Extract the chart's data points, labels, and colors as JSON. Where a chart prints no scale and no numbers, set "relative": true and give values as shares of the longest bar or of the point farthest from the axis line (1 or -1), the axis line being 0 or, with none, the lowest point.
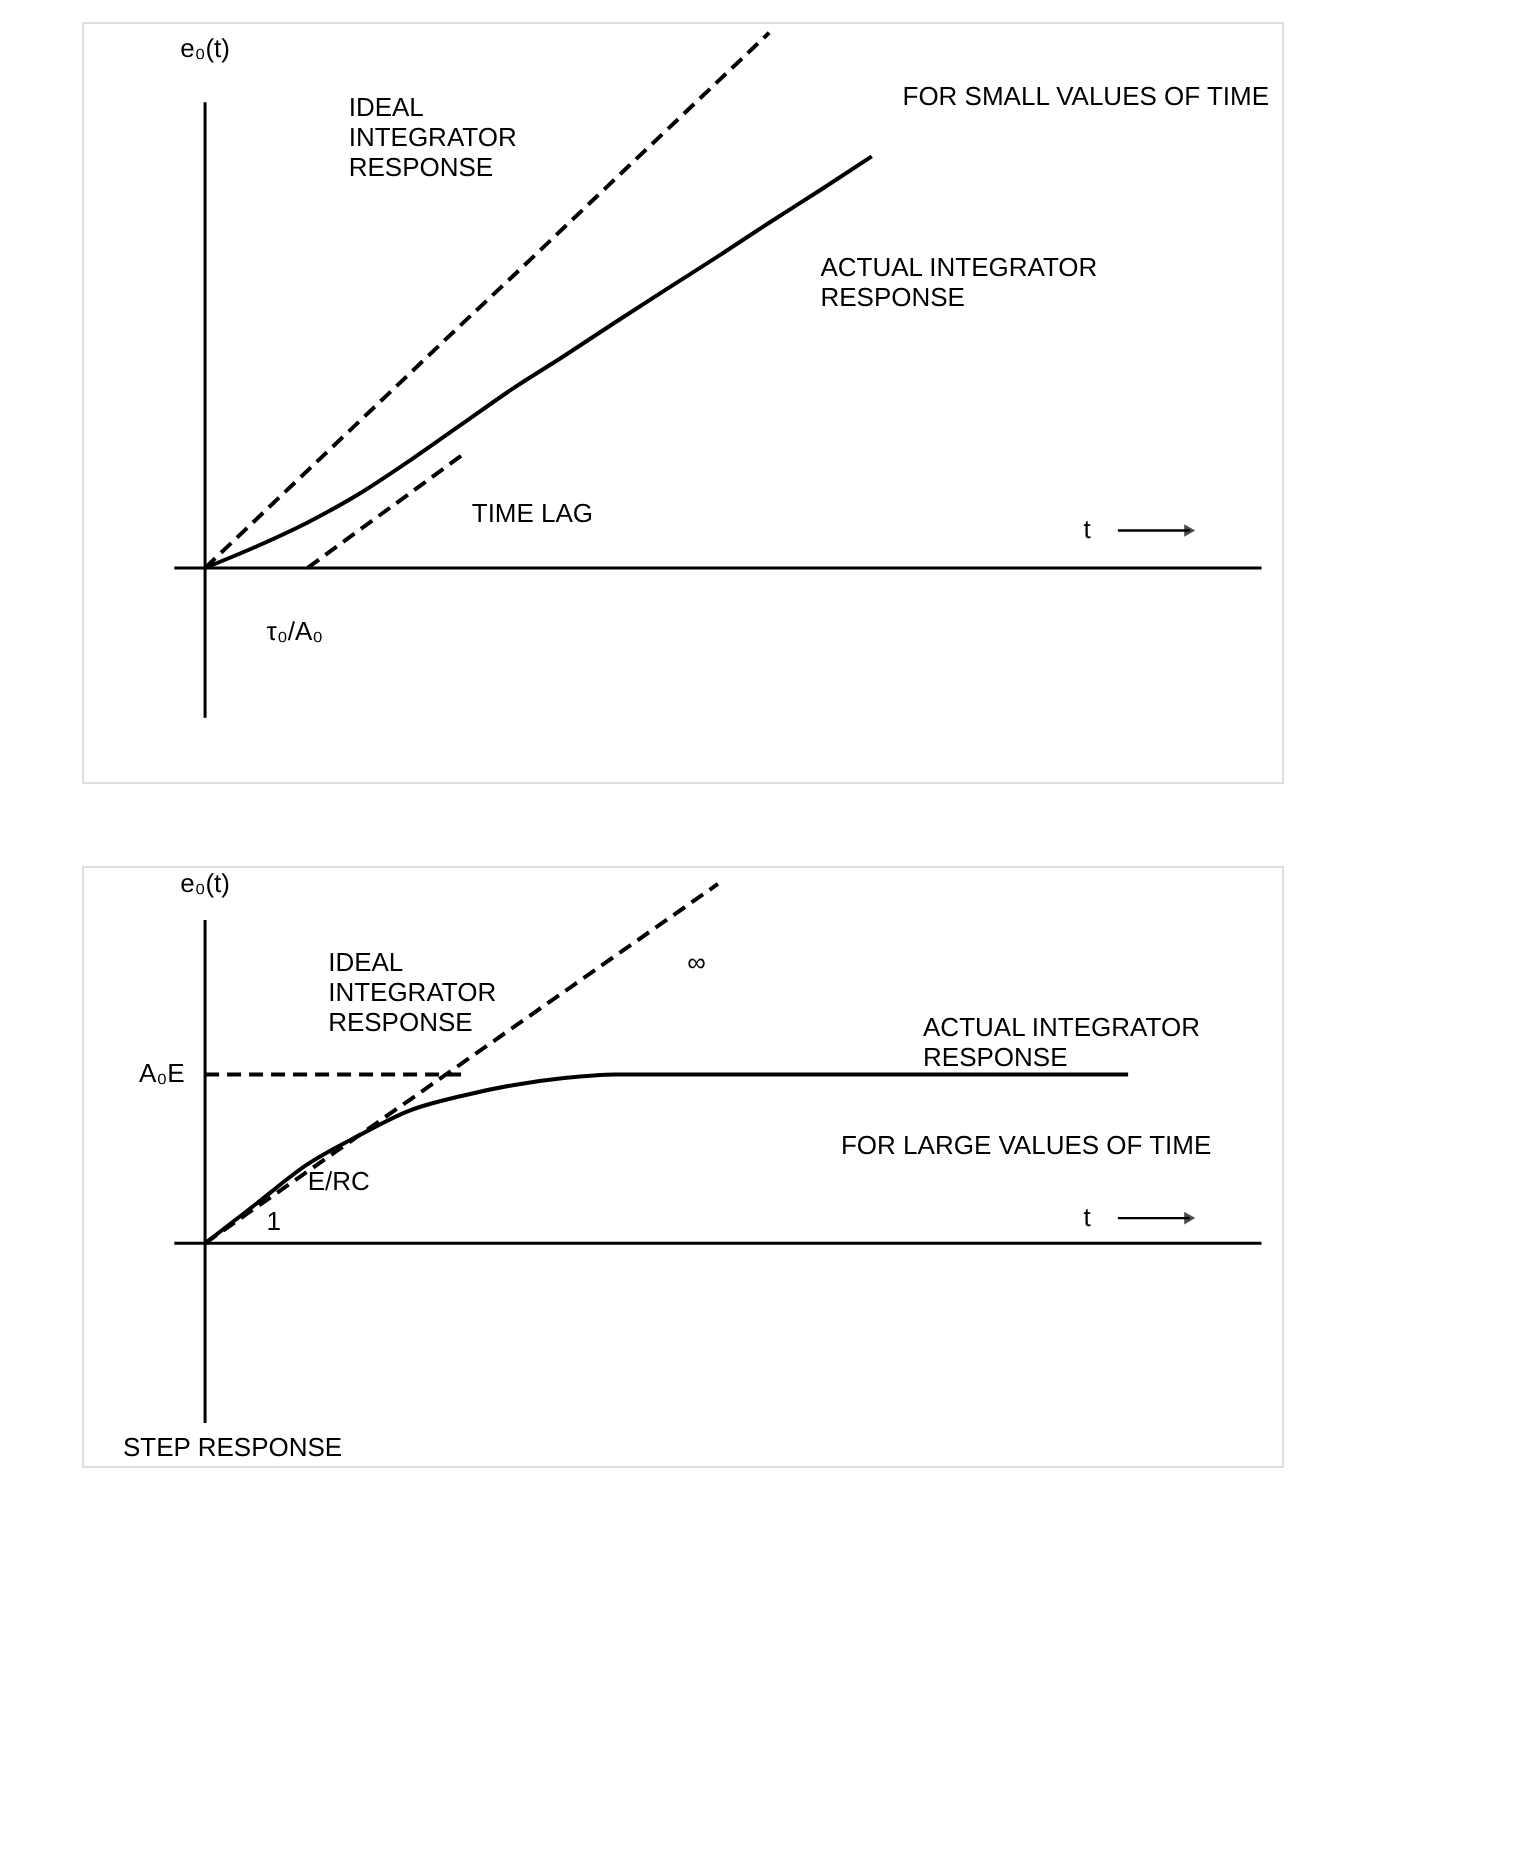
{
  "chart_data": [
    {
      "type": "line",
      "relative": true,
      "ylabel": "e₀(t)",
      "xlabel": "t",
      "marker": "none",
      "categories": [
        null,
        null,
        null,
        null,
        null,
        null,
        null,
        null,
        null,
        null,
        null,
        null,
        null,
        null,
        null,
        null,
        null,
        null,
        null,
        null,
        null
      ],
      "series": [
        {
          "color": "#000000",
          "line_style": "dashed",
          "values": [
            0,
            0.091,
            0.182,
            0.273,
            0.364,
            0.455,
            0.545,
            0.636,
            0.727,
            0.818,
            0.909,
            1.0,
            null,
            null,
            null,
            null,
            null,
            null,
            null,
            null,
            null
          ]
        },
        {
          "color": "#000000",
          "line_style": "solid",
          "values": [
            0,
            0.04,
            0.085,
            0.138,
            0.201,
            0.268,
            0.335,
            0.396,
            0.459,
            0.521,
            0.582,
            0.645,
            0.706,
            0.769,
            null,
            null,
            null,
            null,
            null,
            null,
            null
          ]
        },
        {
          "color": "#000000",
          "line_style": "dashed",
          "values": [
            null,
            null,
            0,
            0.07,
            0.14,
            0.21,
            null,
            null,
            null,
            null,
            null,
            null,
            null,
            null,
            null,
            null,
            null,
            null,
            null,
            null,
            null
          ]
        }
      ],
      "annotations": [
        "IDEAL\nINTEGRATOR\nRESPONSE",
        "ACTUAL INTEGRATOR\nRESPONSE",
        "TIME LAG",
        "τ₀/A₀",
        "FOR SMALL VALUES OF TIME"
      ]
    },
    {
      "type": "line",
      "relative": true,
      "ylabel": "e₀(t)",
      "xlabel": "t",
      "marker": "none",
      "categories": [
        null,
        null,
        null,
        null,
        null,
        null,
        null,
        null,
        null,
        null,
        null,
        null,
        null,
        null,
        null,
        null,
        null,
        null,
        null,
        null,
        null
      ],
      "series": [
        {
          "color": "#000000",
          "line_style": "dashed",
          "values": [
            0,
            0.1,
            0.2,
            0.3,
            0.4,
            0.5,
            0.6,
            0.7,
            0.8,
            0.9,
            1.0,
            null,
            null,
            null,
            null,
            null,
            null,
            null,
            null,
            null,
            null
          ]
        },
        {
          "color": "#000000",
          "line_style": "solid",
          "values": [
            0,
            0.11,
            0.22,
            0.3,
            0.37,
            0.41,
            0.44,
            0.46,
            0.47,
            0.47,
            0.47,
            0.47,
            0.47,
            0.47,
            0.47,
            0.47,
            0.47,
            0.47,
            0.47,
            null,
            null
          ]
        },
        {
          "color": "#000000",
          "line_style": "dashed",
          "values": [
            0.47,
            0.47,
            0.47,
            0.47,
            0.47,
            0.47,
            null,
            null,
            null,
            null,
            null,
            null,
            null,
            null,
            null,
            null,
            null,
            null,
            null,
            null,
            null
          ]
        }
      ],
      "annotations": [
        "IDEAL\nINTEGRATOR\nRESPONSE",
        "∞",
        "ACTUAL INTEGRATOR\nRESPONSE",
        "A₀E",
        "E/RC",
        "1",
        "FOR LARGE VALUES OF TIME",
        "STEP RESPONSE"
      ]
    }
  ]
}
